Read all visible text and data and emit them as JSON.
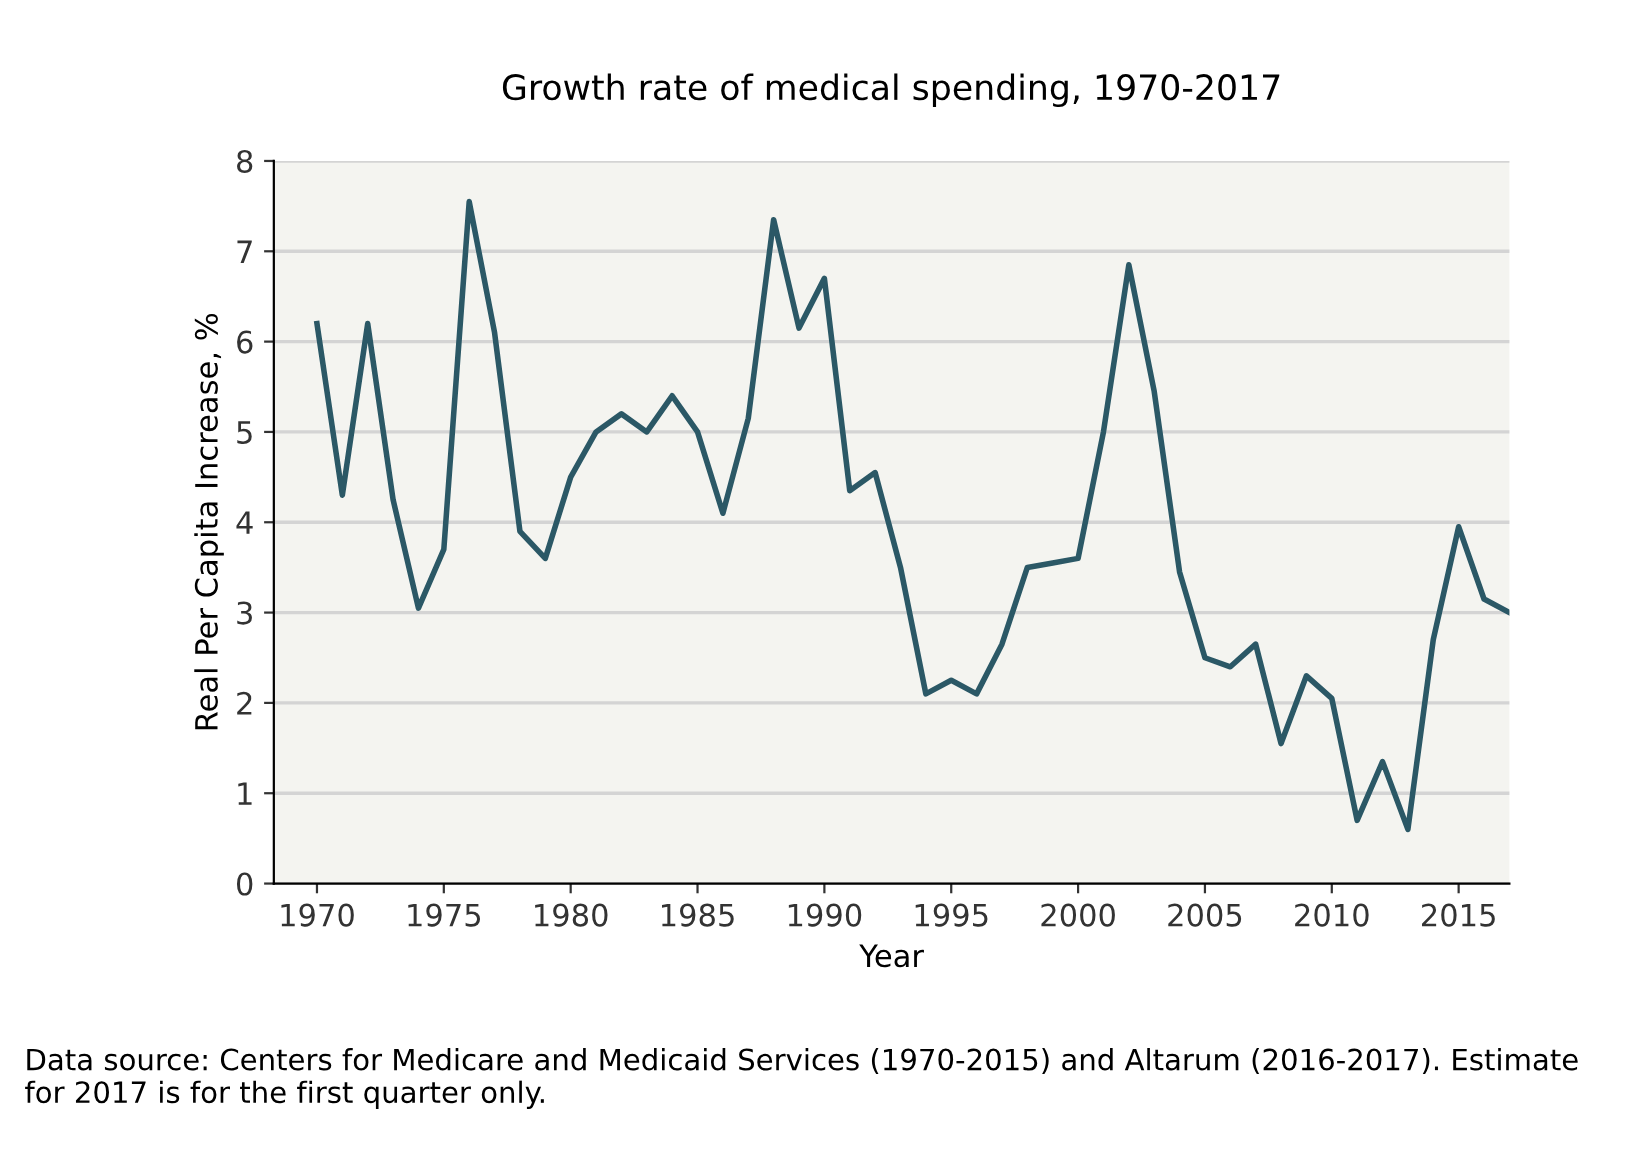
{
  "chart_data": {
    "type": "line",
    "title": "Growth rate of medical spending, 1970-2017",
    "xlabel": "Year",
    "ylabel": "Real Per Capita Increase, %",
    "x": [
      1970,
      1971,
      1972,
      1973,
      1974,
      1975,
      1976,
      1977,
      1978,
      1979,
      1980,
      1981,
      1982,
      1983,
      1984,
      1985,
      1986,
      1987,
      1988,
      1989,
      1990,
      1991,
      1992,
      1993,
      1994,
      1995,
      1996,
      1997,
      1998,
      1999,
      2000,
      2001,
      2002,
      2003,
      2004,
      2005,
      2006,
      2007,
      2008,
      2009,
      2010,
      2011,
      2012,
      2013,
      2014,
      2015,
      2016,
      2017
    ],
    "series": [
      {
        "color": "#2b5866",
        "values": [
          6.2,
          4.3,
          6.2,
          4.25,
          3.05,
          3.7,
          7.55,
          6.1,
          3.9,
          3.6,
          4.5,
          5.0,
          5.2,
          5.0,
          5.4,
          5.0,
          4.1,
          5.15,
          7.35,
          6.15,
          6.7,
          4.35,
          4.55,
          3.5,
          2.1,
          2.25,
          2.1,
          2.65,
          3.5,
          3.55,
          3.6,
          5.0,
          6.85,
          5.45,
          3.45,
          2.5,
          2.4,
          2.65,
          1.55,
          2.3,
          2.05,
          0.7,
          1.35,
          0.6,
          2.7,
          3.95,
          3.15,
          3.0
        ]
      }
    ],
    "xlim": [
      1968.3,
      2017
    ],
    "xticks": [
      1970,
      1975,
      1980,
      1985,
      1990,
      1995,
      2000,
      2005,
      2010,
      2015
    ],
    "ylim": [
      0,
      8
    ],
    "yticks": [
      0,
      1,
      2,
      3,
      4,
      5,
      6,
      7,
      8
    ],
    "grid": "y",
    "legend": false,
    "marker": "none",
    "line_style": "solid",
    "annotations": [
      "Data source: Centers for Medicare and Medicaid Services (1970-2015) and Altarum (2016-2017). Estimate for 2017 is for the first quarter only."
    ]
  }
}
